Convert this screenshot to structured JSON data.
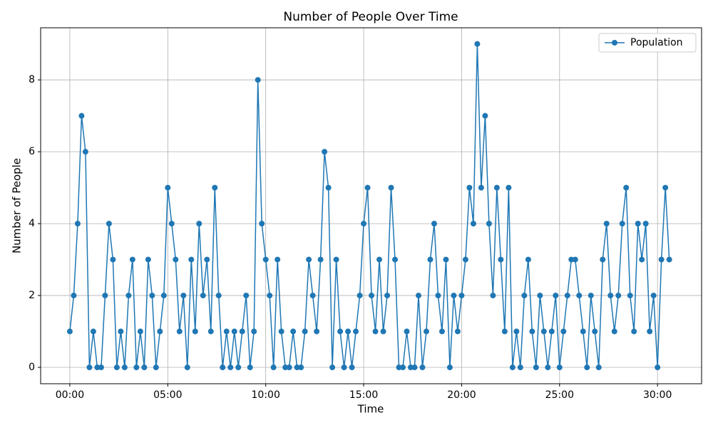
{
  "chart_data": {
    "type": "line",
    "title": "Number of People Over Time",
    "x_label": "Time",
    "y_label": "Number of People",
    "x": [
      0,
      0.2,
      0.4,
      0.6,
      0.8,
      1,
      1.2,
      1.4,
      1.6,
      1.8,
      2,
      2.2,
      2.4,
      2.6,
      2.8,
      3,
      3.2,
      3.4,
      3.6,
      3.8,
      4,
      4.2,
      4.4,
      4.6,
      4.8,
      5,
      5.2,
      5.4,
      5.6,
      5.8,
      6,
      6.2,
      6.4,
      6.6,
      6.8,
      7,
      7.2,
      7.4,
      7.6,
      7.8,
      8,
      8.2,
      8.4,
      8.6,
      8.8,
      9,
      9.2,
      9.4,
      9.6,
      9.8,
      10,
      10.2,
      10.4,
      10.6,
      10.8,
      11,
      11.2,
      11.4,
      11.6,
      11.8,
      12,
      12.2,
      12.4,
      12.6,
      12.8,
      13,
      13.2,
      13.4,
      13.6,
      13.8,
      14,
      14.2,
      14.4,
      14.6,
      14.8,
      15,
      15.2,
      15.4,
      15.6,
      15.8,
      16,
      16.2,
      16.4,
      16.6,
      16.8,
      17,
      17.2,
      17.4,
      17.6,
      17.8,
      18,
      18.2,
      18.4,
      18.6,
      18.8,
      19,
      19.2,
      19.4,
      19.6,
      19.8,
      20,
      20.2,
      20.4,
      20.6,
      20.8,
      21,
      21.2,
      21.4,
      21.6,
      21.8,
      22,
      22.2,
      22.4,
      22.6,
      22.8,
      23,
      23.2,
      23.4,
      23.6,
      23.8,
      24,
      24.2,
      24.4,
      24.6,
      24.8,
      25,
      25.2,
      25.4,
      25.6,
      25.8,
      26,
      26.2,
      26.4,
      26.6,
      26.8,
      27,
      27.2,
      27.4,
      27.6,
      27.8,
      28,
      28.2,
      28.4,
      28.6,
      28.8,
      29,
      29.2,
      29.4,
      29.6,
      29.8,
      30,
      30.2,
      30.4,
      30.6
    ],
    "series": [
      {
        "name": "Population",
        "color": "#1f77b4",
        "values": [
          1,
          2,
          4,
          7,
          6,
          0,
          1,
          0,
          0,
          2,
          4,
          3,
          0,
          1,
          0,
          2,
          3,
          0,
          1,
          0,
          3,
          2,
          0,
          1,
          2,
          5,
          4,
          3,
          1,
          2,
          0,
          3,
          1,
          4,
          2,
          3,
          1,
          5,
          2,
          0,
          1,
          0,
          1,
          0,
          1,
          2,
          0,
          1,
          8,
          4,
          3,
          2,
          0,
          3,
          1,
          0,
          0,
          1,
          0,
          0,
          1,
          3,
          2,
          1,
          3,
          6,
          5,
          0,
          3,
          1,
          0,
          1,
          0,
          1,
          2,
          4,
          5,
          2,
          1,
          3,
          1,
          2,
          5,
          3,
          0,
          0,
          1,
          0,
          0,
          2,
          0,
          1,
          3,
          4,
          2,
          1,
          3,
          0,
          2,
          1,
          2,
          3,
          5,
          4,
          9,
          5,
          7,
          4,
          2,
          5,
          3,
          1,
          5,
          0,
          1,
          0,
          2,
          3,
          1,
          0,
          2,
          1,
          0,
          1,
          2,
          0,
          1,
          2,
          3,
          3,
          2,
          1,
          0,
          2,
          1,
          0,
          3,
          4,
          2,
          1,
          2,
          4,
          5,
          2,
          1,
          4,
          3,
          4,
          1,
          2,
          0,
          3,
          5,
          3
        ]
      }
    ],
    "xlim": [
      -1.49,
      32.25
    ],
    "xticks": [
      {
        "value": 0,
        "label": "00:00"
      },
      {
        "value": 5,
        "label": "05:00"
      },
      {
        "value": 10,
        "label": "10:00"
      },
      {
        "value": 15,
        "label": "15:00"
      },
      {
        "value": 20,
        "label": "20:00"
      },
      {
        "value": 25,
        "label": "25:00"
      },
      {
        "value": 30,
        "label": "30:00"
      }
    ],
    "ylim": [
      -0.455,
      9.45
    ],
    "yticks": [
      0,
      2,
      4,
      6,
      8
    ],
    "grid": true,
    "legend": "upper right"
  }
}
